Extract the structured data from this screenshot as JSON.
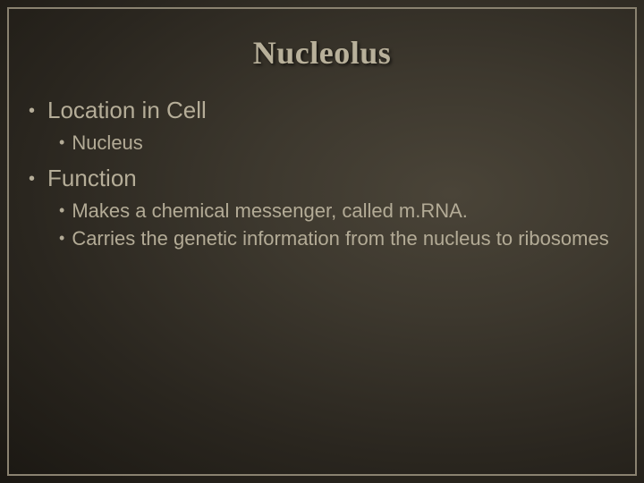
{
  "slide": {
    "title": "Nucleolus",
    "sections": [
      {
        "heading": "Location in Cell",
        "items": [
          "Nucleus"
        ]
      },
      {
        "heading": "Function",
        "items": [
          "Makes a chemical messenger, called m.RNA.",
          "Carries the genetic information from the nucleus to ribosomes"
        ]
      }
    ]
  },
  "style": {
    "background_gradient": [
      "#4a4438",
      "#3d382e",
      "#2a261f",
      "#1a1712",
      "#0d0b08"
    ],
    "border_color": "#8a8270",
    "title_color": "#b8b09a",
    "text_color": "#b5ad98",
    "title_fontsize": 36,
    "level1_fontsize": 26,
    "level2_fontsize": 22,
    "title_font": "Georgia serif",
    "body_font": "Arial sans-serif"
  }
}
